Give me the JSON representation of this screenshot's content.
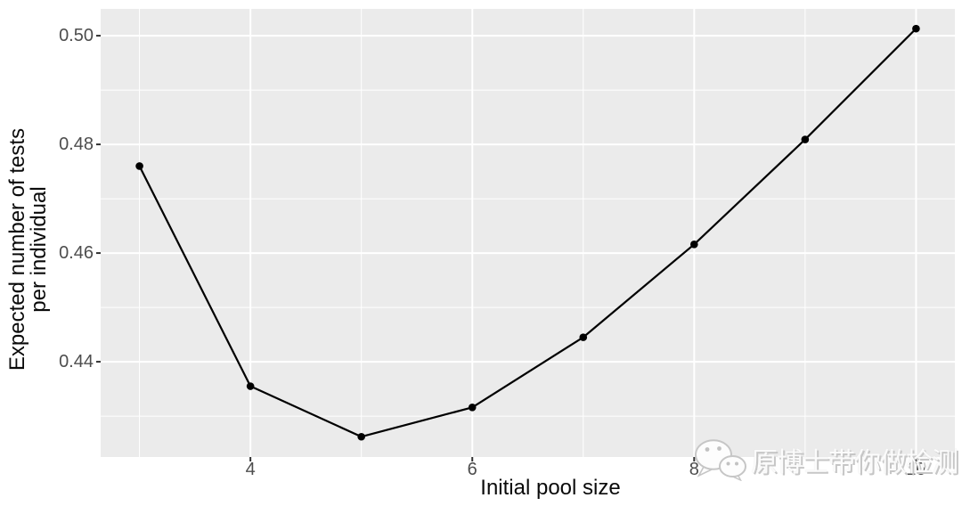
{
  "watermark": {
    "text": "原博士带你做检测"
  },
  "chart_data": {
    "type": "line",
    "title": "",
    "xlabel": "Initial pool size",
    "ylabel": "Expected number of tests\nper individual",
    "x": [
      3,
      4,
      5,
      6,
      7,
      8,
      9,
      10
    ],
    "series": [
      {
        "name": "expected-tests-per-individual",
        "values": [
          0.476,
          0.4355,
          0.4262,
          0.4316,
          0.4445,
          0.4616,
          0.4809,
          0.5013
        ]
      }
    ],
    "x_ticks": [
      {
        "value": 4,
        "label": "4"
      },
      {
        "value": 6,
        "label": "6"
      },
      {
        "value": 8,
        "label": "8"
      },
      {
        "value": 10,
        "label": "10"
      }
    ],
    "x_minor_ticks": [
      3,
      5,
      7,
      9
    ],
    "y_ticks": [
      {
        "value": 0.44,
        "label": "0.44"
      },
      {
        "value": 0.46,
        "label": "0.46"
      },
      {
        "value": 0.48,
        "label": "0.48"
      },
      {
        "value": 0.5,
        "label": "0.50"
      }
    ],
    "y_minor_ticks": [
      0.43,
      0.45,
      0.47,
      0.49
    ],
    "xlim": [
      2.65,
      10.35
    ],
    "ylim": [
      0.42247,
      0.50493
    ],
    "grid": "major+minor",
    "legend": false,
    "marker": "filled-circle",
    "colors": {
      "panel_bg": "#EBEBEB",
      "grid": "#FFFFFF",
      "line": "#000000",
      "point": "#000000",
      "tick_text": "#4D4D4D",
      "axis_title": "#0A0A0A",
      "tick_mark": "#333333"
    }
  }
}
